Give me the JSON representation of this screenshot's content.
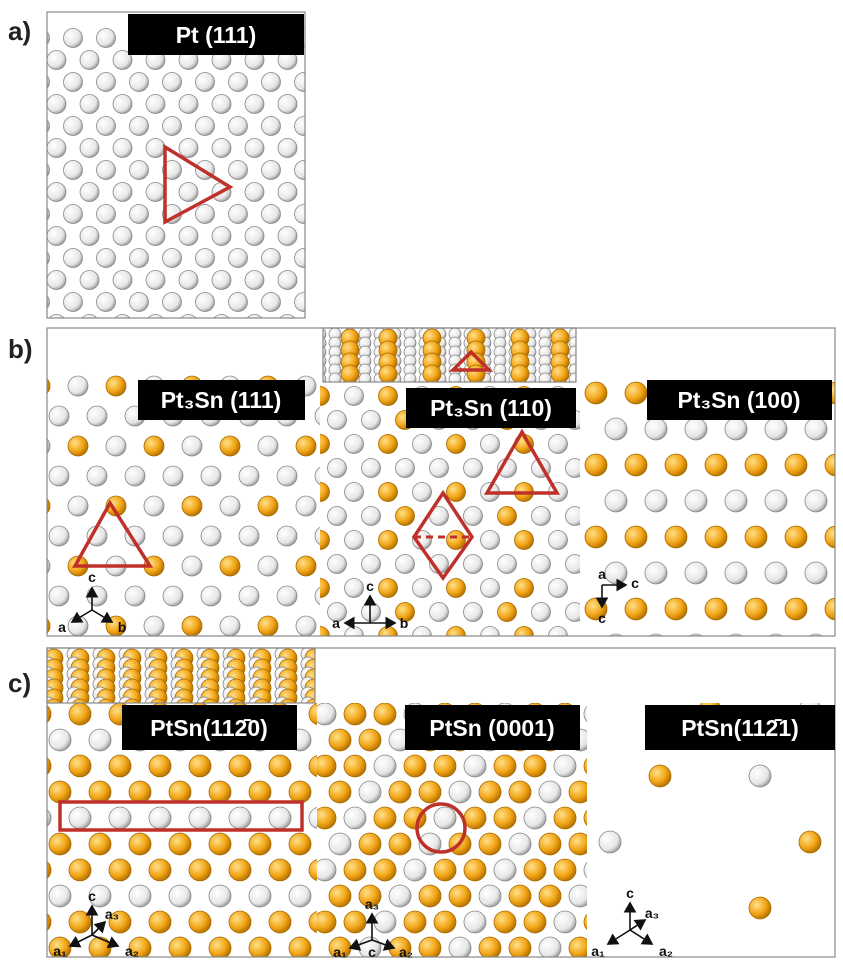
{
  "panels": [
    {
      "label": "a)",
      "views": [
        {
          "title": "Pt (111)"
        }
      ]
    },
    {
      "label": "b)",
      "views": [
        {
          "title": "Pt₃Sn (111)",
          "axes": [
            "c",
            "a",
            "b"
          ]
        },
        {
          "title": "Pt₃Sn (110)",
          "axes": [
            "c",
            "a",
            "b"
          ]
        },
        {
          "title": "Pt₃Sn (100)",
          "axes": [
            "a",
            "c",
            "c"
          ]
        }
      ]
    },
    {
      "label": "c)",
      "views": [
        {
          "title": "PtSn(112̄0)",
          "axes": [
            "c",
            "a₃",
            "a₁",
            "a₂"
          ]
        },
        {
          "title": "PtSn (0001)",
          "axes": [
            "a₃",
            "a₁",
            "c",
            "a₂"
          ]
        },
        {
          "title": "PtSn(112̄1)",
          "axes": [
            "c",
            "a₃",
            "a₁",
            "a₂"
          ]
        }
      ]
    }
  ]
}
